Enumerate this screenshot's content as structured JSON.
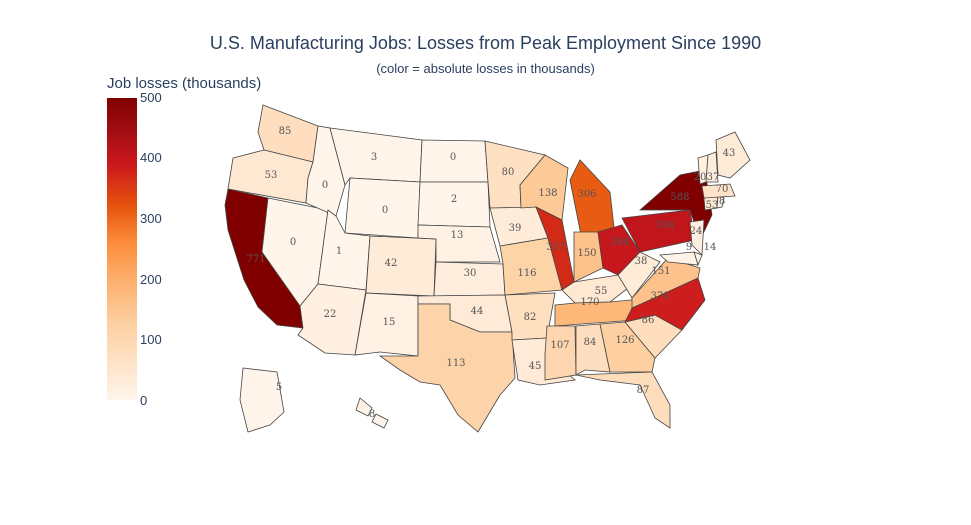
{
  "title": "U.S. Manufacturing Jobs: Losses from Peak Employment Since 1990",
  "subtitle": "(color = absolute losses in thousands)",
  "colorbar": {
    "title": "Job losses (thousands)",
    "ticks": [
      "500",
      "400",
      "300",
      "200",
      "100",
      "0"
    ],
    "colors": [
      "#fff5eb",
      "#fee6ce",
      "#fdd0a2",
      "#fdae6b",
      "#fd8d3c",
      "#e6550d",
      "#cb181d",
      "#a50f15",
      "#800000"
    ]
  },
  "states": [
    {
      "code": "WA",
      "value": "85"
    },
    {
      "code": "OR",
      "value": "53"
    },
    {
      "code": "CA",
      "value": "771"
    },
    {
      "code": "NV",
      "value": "0"
    },
    {
      "code": "ID",
      "value": "0"
    },
    {
      "code": "MT",
      "value": "3"
    },
    {
      "code": "WY",
      "value": "0"
    },
    {
      "code": "UT",
      "value": "1"
    },
    {
      "code": "AZ",
      "value": "22"
    },
    {
      "code": "CO",
      "value": "42"
    },
    {
      "code": "NM",
      "value": "15"
    },
    {
      "code": "ND",
      "value": "0"
    },
    {
      "code": "SD",
      "value": "2"
    },
    {
      "code": "NE",
      "value": "13"
    },
    {
      "code": "KS",
      "value": "30"
    },
    {
      "code": "OK",
      "value": "44"
    },
    {
      "code": "TX",
      "value": "113"
    },
    {
      "code": "MN",
      "value": "80"
    },
    {
      "code": "IA",
      "value": "39"
    },
    {
      "code": "MO",
      "value": "116"
    },
    {
      "code": "AR",
      "value": "82"
    },
    {
      "code": "LA",
      "value": "45"
    },
    {
      "code": "WI",
      "value": "138"
    },
    {
      "code": "IL",
      "value": "357"
    },
    {
      "code": "MI",
      "value": "306"
    },
    {
      "code": "IN",
      "value": "150"
    },
    {
      "code": "OH",
      "value": "384"
    },
    {
      "code": "KY",
      "value": "55"
    },
    {
      "code": "TN",
      "value": "170"
    },
    {
      "code": "MS",
      "value": "107"
    },
    {
      "code": "AL",
      "value": "84"
    },
    {
      "code": "GA",
      "value": "126"
    },
    {
      "code": "FL",
      "value": "87"
    },
    {
      "code": "SC",
      "value": "86"
    },
    {
      "code": "NC",
      "value": "370"
    },
    {
      "code": "VA",
      "value": "151"
    },
    {
      "code": "WV",
      "value": "38"
    },
    {
      "code": "PA",
      "value": "394"
    },
    {
      "code": "NY",
      "value": "588"
    },
    {
      "code": "NJ",
      "value": "24"
    },
    {
      "code": "DE",
      "value": "14"
    },
    {
      "code": "MD",
      "value": "9"
    },
    {
      "code": "CT",
      "value": "53"
    },
    {
      "code": "RI",
      "value": "8"
    },
    {
      "code": "MA",
      "value": "70"
    },
    {
      "code": "VT",
      "value": "20"
    },
    {
      "code": "NH",
      "value": "37"
    },
    {
      "code": "ME",
      "value": "43"
    },
    {
      "code": "AK",
      "value": "5"
    },
    {
      "code": "HI",
      "value": "8"
    }
  ]
}
